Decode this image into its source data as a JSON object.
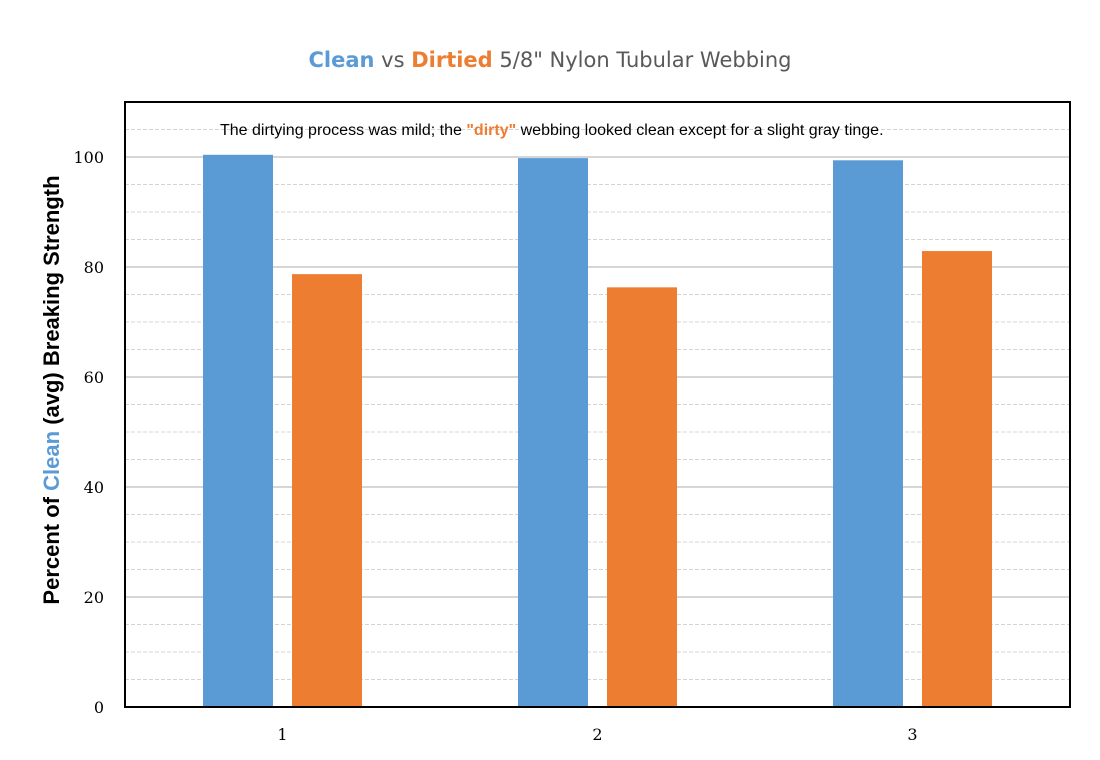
{
  "title": {
    "clean_word": "Clean",
    "vs_word": "vs",
    "dirtied_word": "Dirtied",
    "rest": "5/8\" Nylon Tubular Webbing"
  },
  "ylabel": {
    "prefix": "Percent of",
    "clean_word": "Clean",
    "suffix": "(avg) Breaking Strength"
  },
  "annotation": {
    "prefix": "The dirtying process was mild; the",
    "dirty_word": "\"dirty\"",
    "suffix": "webbing looked clean except for a slight gray tinge."
  },
  "colors": {
    "clean": "#5b9bd5",
    "dirtied": "#ed7d31"
  },
  "chart_data": {
    "type": "bar",
    "categories": [
      "1",
      "2",
      "3"
    ],
    "series": [
      {
        "values": [
          100.4,
          99.8,
          99.4
        ]
      },
      {
        "values": [
          78.7,
          76.3,
          82.9
        ]
      }
    ],
    "yticks": [
      "0",
      "20",
      "40",
      "60",
      "80",
      "100"
    ],
    "ylim": [
      0,
      110
    ],
    "grid": true,
    "legend": "none"
  }
}
